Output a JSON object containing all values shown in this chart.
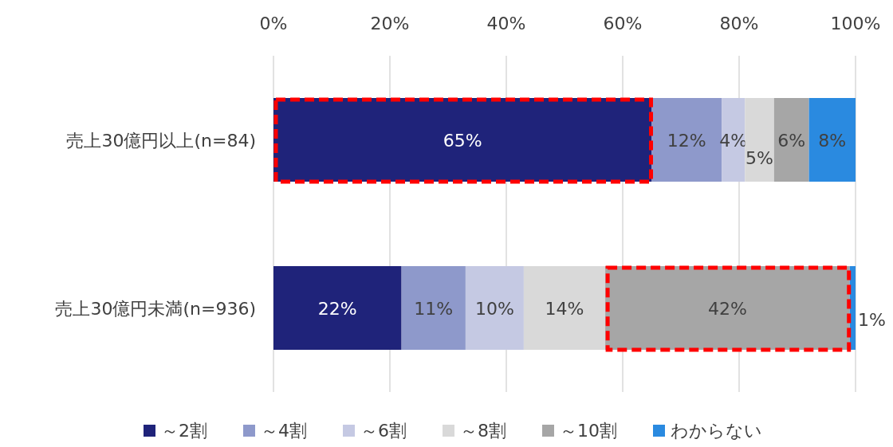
{
  "chart_data": {
    "type": "bar",
    "orientation": "horizontal",
    "stacked": true,
    "legend": "bottom",
    "grid": "x",
    "categories": [
      "売上30億円以上(n=84)",
      "売上30億円未満(n=936)"
    ],
    "xlim": [
      0,
      100
    ],
    "xticks": [
      {
        "value": 0,
        "label": "0%"
      },
      {
        "value": 20,
        "label": "20%"
      },
      {
        "value": 40,
        "label": "40%"
      },
      {
        "value": 60,
        "label": "60%"
      },
      {
        "value": 80,
        "label": "80%"
      },
      {
        "value": 100,
        "label": "100%"
      }
    ],
    "series": [
      {
        "name": "～2割",
        "color": "#1f237a",
        "values": [
          65,
          22
        ],
        "value_labels": [
          "65%",
          "22%"
        ]
      },
      {
        "name": "～4割",
        "color": "#8e99cb",
        "values": [
          12,
          11
        ],
        "value_labels": [
          "12%",
          "11%"
        ]
      },
      {
        "name": "～6割",
        "color": "#c5c9e3",
        "values": [
          4,
          10
        ],
        "value_labels": [
          "4%",
          "10%"
        ]
      },
      {
        "name": "～8割",
        "color": "#d9d9d9",
        "values": [
          5,
          14
        ],
        "value_labels": [
          "5%",
          "14%"
        ]
      },
      {
        "name": "～10割",
        "color": "#a6a6a6",
        "values": [
          6,
          42
        ],
        "value_labels": [
          "6%",
          "42%"
        ]
      },
      {
        "name": "わからない",
        "color": "#2a8ae0",
        "values": [
          8,
          1
        ],
        "value_labels": [
          "8%",
          "1%"
        ]
      }
    ]
  }
}
